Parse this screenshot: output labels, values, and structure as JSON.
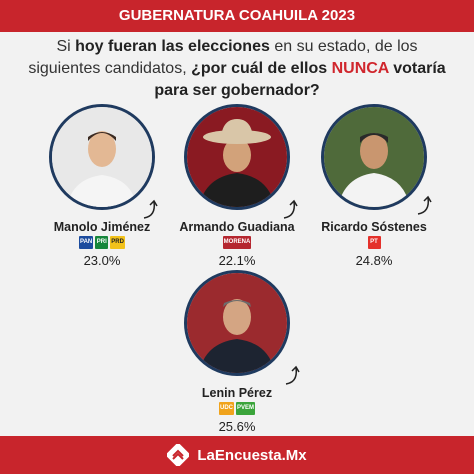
{
  "header": {
    "title": "GUBERNATURA COAHUILA 2023"
  },
  "question": {
    "part1": "Si ",
    "bold1": "hoy fueran las elecciones",
    "part2": " en su estado, de los siguientes candidatos, ",
    "bold2": "¿por cuál de ellos ",
    "highlight": "NUNCA",
    "bold3": " votaría para ser gobernador?"
  },
  "chart_data": {
    "type": "table",
    "categories": [
      "Manolo Jiménez",
      "Armando Guadiana",
      "Ricardo Sóstenes",
      "Lenin Pérez"
    ],
    "values": [
      23.0,
      22.1,
      24.8,
      25.6
    ],
    "value_labels": [
      "23.0%",
      "22.1%",
      "24.8%",
      "25.6%"
    ],
    "party_logos": [
      [
        "PAN",
        "PRI",
        "PRD"
      ],
      [
        "MORENA"
      ],
      [
        "PT"
      ],
      [
        "UDC",
        "PVEM"
      ]
    ]
  },
  "colors": {
    "accent_red": "#c8252c",
    "ring": "#1f3a5f",
    "pan": "#1c4c9e",
    "pri": "#16863b",
    "prd": "#f2c21b",
    "morena": "#b5262f",
    "pt": "#e4312b",
    "udc": "#f0a31c",
    "pvem": "#3aa43a"
  },
  "footer": {
    "brand": "LaEncuesta.Mx"
  }
}
